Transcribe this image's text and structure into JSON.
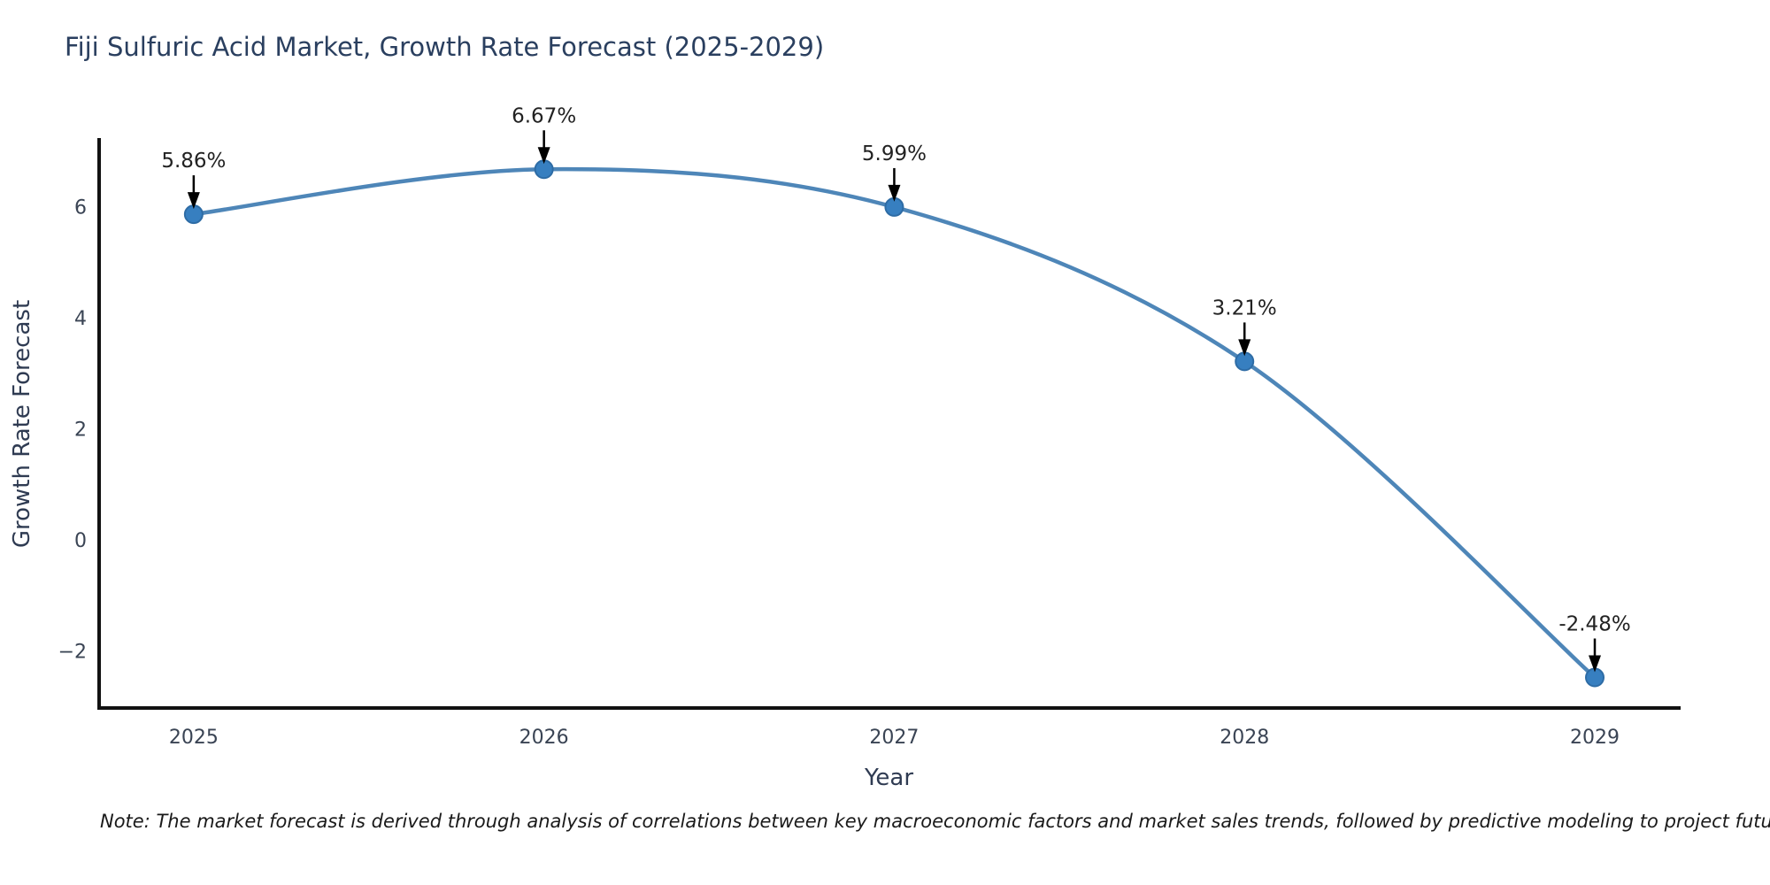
{
  "title": "Fiji Sulfuric Acid Market, Growth Rate Forecast (2025-2029)",
  "note": "Note: The market forecast is derived through analysis of correlations between key macroeconomic factors and market sales trends, followed by predictive modeling to project future sales",
  "chart_data": {
    "type": "line",
    "title": "Fiji Sulfuric Acid Market, Growth Rate Forecast (2025-2029)",
    "xlabel": "Year",
    "ylabel": "Growth Rate Forecast",
    "categories": [
      "2025",
      "2026",
      "2027",
      "2028",
      "2029"
    ],
    "x": [
      2025,
      2026,
      2027,
      2028,
      2029
    ],
    "values": [
      5.86,
      6.67,
      5.99,
      3.21,
      -2.48
    ],
    "point_labels": [
      "5.86%",
      "6.67%",
      "5.99%",
      "3.21%",
      "-2.48%"
    ],
    "y_ticks": [
      -2,
      0,
      2,
      4,
      6
    ],
    "y_tick_labels": [
      "−2",
      "0",
      "2",
      "4",
      "6"
    ],
    "xlim": [
      2024.73,
      2029.24
    ],
    "ylim": [
      -3.03,
      7.2
    ],
    "grid": false,
    "legend": "none",
    "annotation_arrow": "down",
    "colors": {
      "line": "#4e86b8",
      "marker": "#377fc0",
      "marker_edge": "#2e6ca5",
      "axis": "#111111",
      "title": "#2a3f5f",
      "axis_label": "#2f3b52",
      "tick": "#3a4454",
      "annotation": "#222222",
      "arrow": "#000000",
      "background": "#ffffff"
    }
  }
}
